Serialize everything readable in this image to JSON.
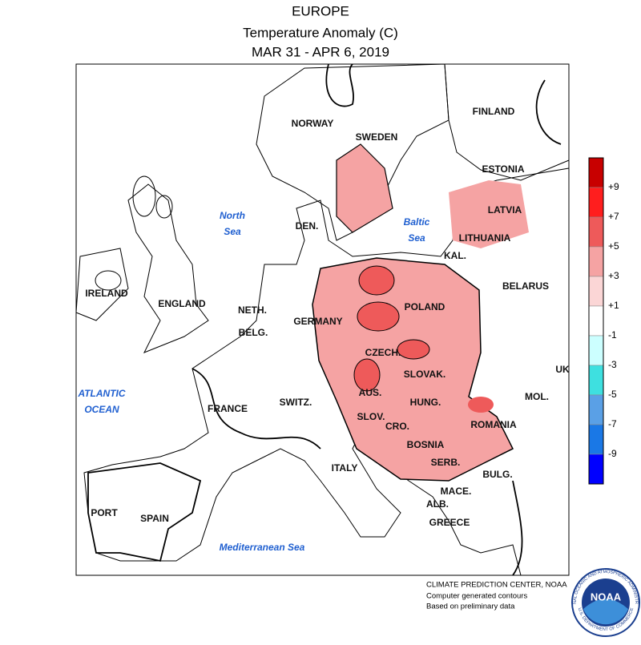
{
  "header": {
    "title": "EUROPE",
    "subtitle": "Temperature Anomaly (C)",
    "dates": "MAR 31 - APR 6, 2019"
  },
  "map": {
    "countries": [
      "NORWAY",
      "SWEDEN",
      "FINLAND",
      "ESTONIA",
      "LATVIA",
      "LITHUANIA",
      "KAL.",
      "BELARUS",
      "DEN.",
      "POLAND",
      "GERMANY",
      "NETH.",
      "BELG.",
      "ENGLAND",
      "IRELAND",
      "CZECH.",
      "SLOVAK.",
      "AUS.",
      "HUNG.",
      "SWITZ.",
      "FRANCE",
      "SLOV.",
      "CRO.",
      "BOSNIA",
      "ROMANIA",
      "MOL.",
      "SERB.",
      "BULG.",
      "ITALY",
      "MACE.",
      "ALB.",
      "GREECE",
      "SPAIN",
      "PORT",
      "UK"
    ],
    "seas": [
      [
        "North",
        "Sea"
      ],
      [
        "Baltic",
        "Sea"
      ],
      [
        "ATLANTIC",
        "OCEAN"
      ],
      [
        "Mediterranean Sea"
      ]
    ]
  },
  "legend": {
    "colors": [
      "#c80000",
      "#ff1e1e",
      "#ee5a5a",
      "#f5a3a3",
      "#fbd6d6",
      "#ffffff",
      "#ccffff",
      "#3ee0e0",
      "#5aa0e6",
      "#1a78e6",
      "#0000ff"
    ],
    "labels": [
      "+9",
      "+7",
      "+5",
      "+3",
      "+1",
      "-1",
      "-3",
      "-5",
      "-7",
      "-9"
    ]
  },
  "credits": [
    "CLIMATE PREDICTION CENTER, NOAA",
    "Computer generated contours",
    "Based on preliminary data"
  ],
  "logo": {
    "name": "NOAA",
    "ring_top": "NATIONAL OCEANIC AND ATMOSPHERIC ADMINISTRATION",
    "ring_bottom": "U.S. DEPARTMENT OF COMMERCE"
  }
}
